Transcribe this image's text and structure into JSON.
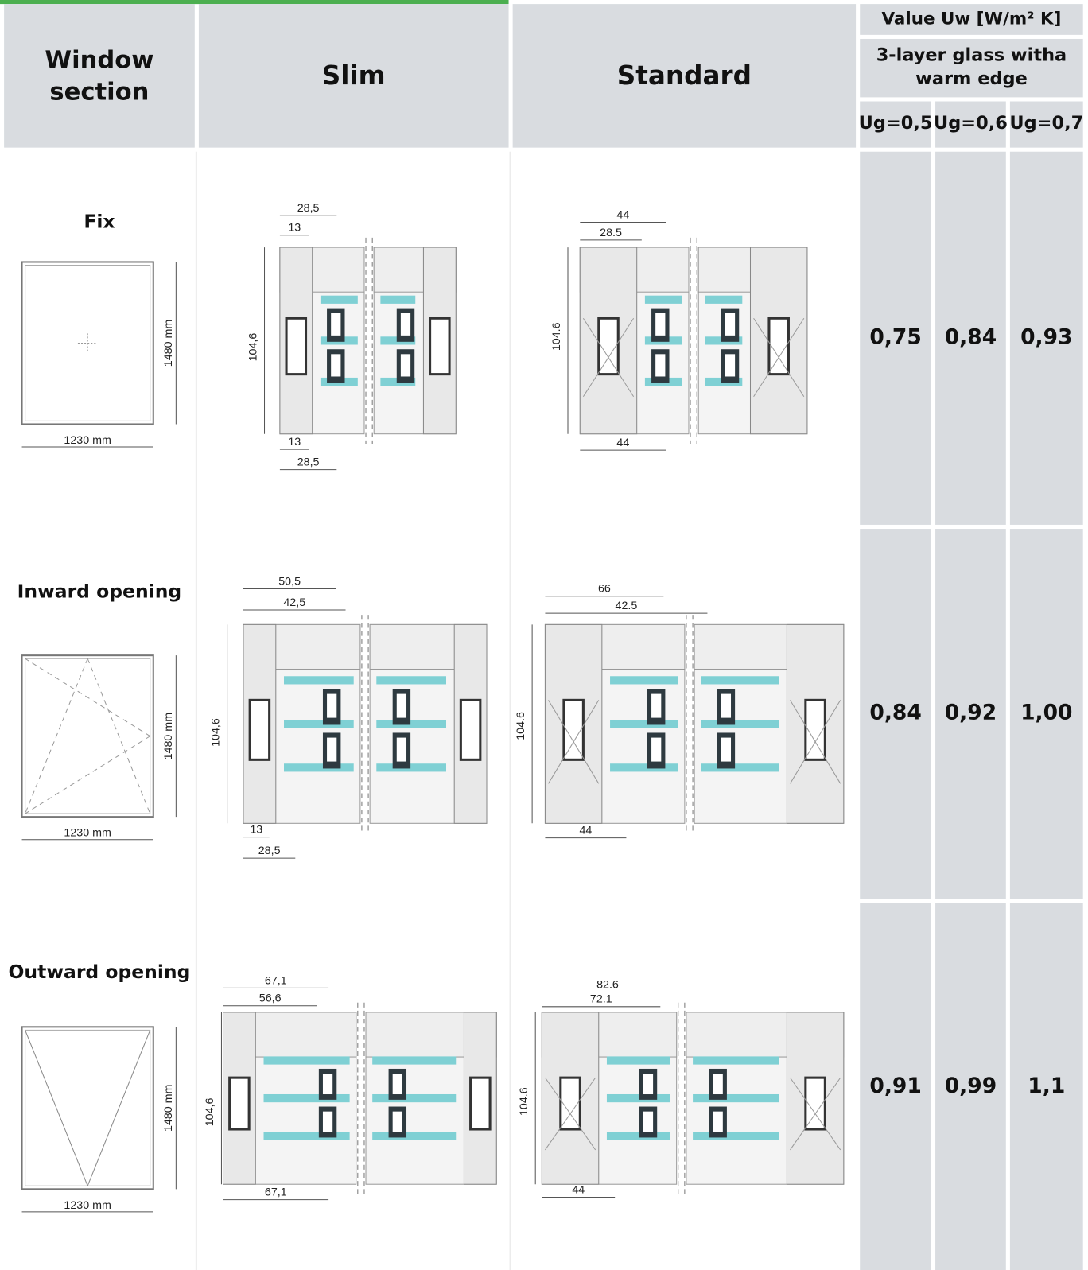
{
  "header": {
    "window_section": "Window section",
    "slim": "Slim",
    "standard": "Standard",
    "value_uw": "Value Uw [W/m² K]",
    "glass": "3-layer glass witha warm edge",
    "ug": [
      "Ug=0,5",
      "Ug=0,6",
      "Ug=0,7"
    ]
  },
  "rows": [
    {
      "label": "Fix",
      "width": "1230 mm",
      "height": "1480 mm",
      "slim_dims": [
        "28,5",
        "13",
        "104,6",
        "13",
        "28,5"
      ],
      "standard_dims": [
        "44",
        "28.5",
        "104.6",
        "44"
      ],
      "values": [
        "0,75",
        "0,84",
        "0,93"
      ]
    },
    {
      "label": "Inward opening",
      "width": "1230 mm",
      "height": "1480 mm",
      "slim_dims": [
        "50,5",
        "42,5",
        "104,6",
        "13",
        "28,5"
      ],
      "standard_dims": [
        "66",
        "42.5",
        "104.6",
        "44"
      ],
      "values": [
        "0,84",
        "0,92",
        "1,00"
      ]
    },
    {
      "label": "Outward opening",
      "width": "1230 mm",
      "height": "1480 mm",
      "slim_dims": [
        "67,1",
        "56,6",
        "104,6",
        "67,1"
      ],
      "standard_dims": [
        "82.6",
        "72.1",
        "104.6",
        "44"
      ],
      "values": [
        "0,91",
        "0,99",
        "1,1"
      ]
    }
  ]
}
